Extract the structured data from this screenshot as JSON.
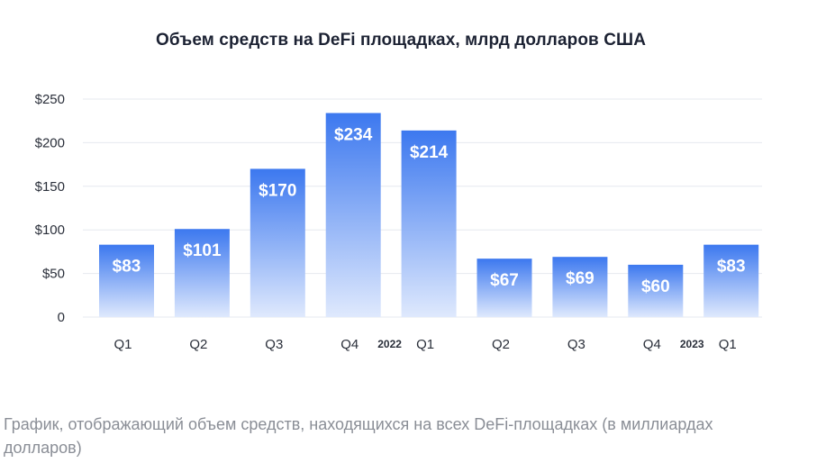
{
  "chart_data": {
    "type": "bar",
    "title": "Объем средств на DeFi площадках, млрд долларов США",
    "categories": [
      "Q1",
      "Q2",
      "Q3",
      "Q4",
      "Q1",
      "Q2",
      "Q3",
      "Q4",
      "Q1"
    ],
    "values": [
      83,
      101,
      170,
      234,
      214,
      67,
      69,
      60,
      83
    ],
    "value_labels": [
      "$83",
      "$101",
      "$170",
      "$234",
      "$214",
      "$67",
      "$69",
      "$60",
      "$83"
    ],
    "year_markers": [
      {
        "label": "2022",
        "before_index": 4
      },
      {
        "label": "2023",
        "before_index": 8
      }
    ],
    "yticks": [
      0,
      50,
      100,
      150,
      200,
      250
    ],
    "ytick_labels": [
      "0",
      "$50",
      "$100",
      "$150",
      "$200",
      "$250"
    ],
    "ylim": [
      0,
      250
    ],
    "xlabel": "",
    "ylabel": "",
    "grid": true,
    "colors": {
      "bar_top": "#3c78ef",
      "bar_bottom": "#dfe9fd",
      "grid": "#e6e9ef"
    }
  },
  "caption": "График, отображающий объем средств, находящихся на всех DeFi-площадках (в миллиардах долларов)"
}
